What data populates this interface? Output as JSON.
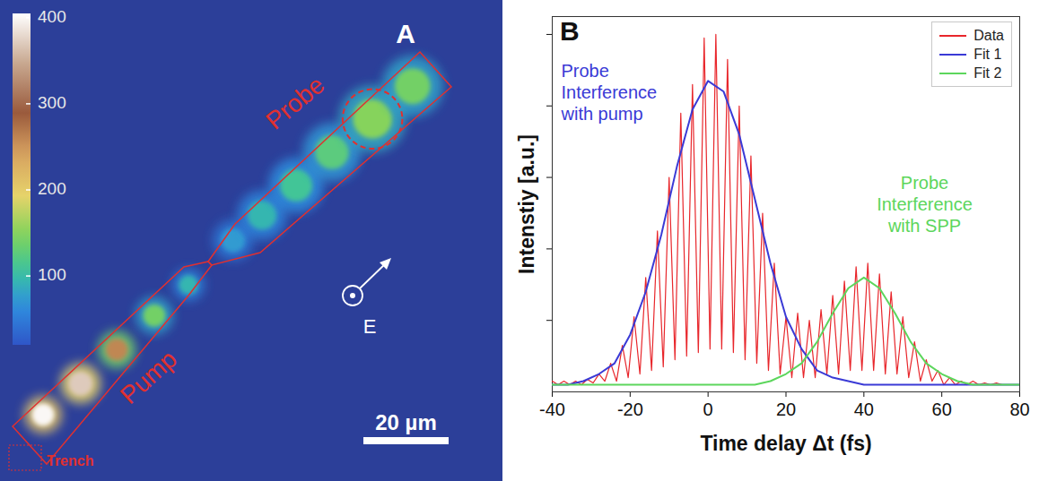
{
  "image_panel": {
    "panel": "A",
    "colorbar": {
      "range": [
        20,
        405
      ],
      "ticks": [
        100,
        200,
        300,
        400
      ]
    },
    "regions": [
      {
        "label": "Probe"
      },
      {
        "label": "Pump"
      },
      {
        "label": "Trench"
      }
    ],
    "spots": [
      {
        "x_um": 10.1,
        "y_um": 15.6,
        "intensity": 400,
        "radius_um": 2.6
      },
      {
        "x_um": 18.9,
        "y_um": 22.9,
        "intensity": 370,
        "radius_um": 2.8
      },
      {
        "x_um": 27.4,
        "y_um": 30.9,
        "intensity": 260,
        "radius_um": 2.6
      },
      {
        "x_um": 36.2,
        "y_um": 38.9,
        "intensity": 140,
        "radius_um": 2.6
      },
      {
        "x_um": 44.2,
        "y_um": 46.1,
        "intensity": 95,
        "radius_um": 2.2
      },
      {
        "x_um": 54.7,
        "y_um": 56.6,
        "intensity": 75,
        "radius_um": 2.8
      },
      {
        "x_um": 61.5,
        "y_um": 62.5,
        "intensity": 95,
        "radius_um": 3.4
      },
      {
        "x_um": 69.5,
        "y_um": 69.5,
        "intensity": 110,
        "radius_um": 3.8
      },
      {
        "x_um": 77.9,
        "y_um": 77.3,
        "intensity": 125,
        "radius_um": 4.0
      },
      {
        "x_um": 87.4,
        "y_um": 85.1,
        "intensity": 150,
        "radius_um": 4.6
      },
      {
        "x_um": 96.8,
        "y_um": 92.8,
        "intensity": 140,
        "radius_um": 4.2
      }
    ],
    "highlight": {
      "spot": 9,
      "radius_um": 7
    },
    "scale_bar": {
      "length_um": 20,
      "label": "20 µm"
    },
    "field_label": "E"
  },
  "chart_data": {
    "type": "line",
    "panel": "B",
    "x_label": "Time delay Δt (fs)",
    "y_label": "Intenstiy [a.u.]",
    "xlim": [
      -40,
      80
    ],
    "xticks": [
      -40,
      -20,
      0,
      20,
      40,
      60,
      80
    ],
    "ylim": [
      0,
      1.05
    ],
    "yticks": [
      0.2,
      0.4,
      0.6,
      0.8,
      1
    ],
    "tick_labels": "x",
    "legend": "top-right",
    "series": [
      {
        "name": "Data",
        "color": "#e8262b",
        "x": [
          -40,
          -38.5,
          -37,
          -35.5,
          -34,
          -32.5,
          -31,
          -29.5,
          -28,
          -26.5,
          -25,
          -23.5,
          -22,
          -20.5,
          -19,
          -17.5,
          -16,
          -14.5,
          -13,
          -11.5,
          -10,
          -8.5,
          -7,
          -5.5,
          -4,
          -2.5,
          -1,
          0.5,
          2,
          3.5,
          5,
          6.5,
          8,
          9.5,
          11,
          12.5,
          14,
          15.5,
          17,
          18.5,
          20,
          21.5,
          23,
          24.5,
          26,
          27.5,
          29,
          30.5,
          32,
          33.5,
          35,
          36.5,
          38,
          39.5,
          41,
          42.5,
          44,
          45.5,
          47,
          48.5,
          50,
          51.5,
          53,
          54.5,
          56,
          57.5,
          59,
          60.5,
          62,
          63.5,
          65,
          66.5,
          68,
          69.5,
          71,
          72.5,
          74,
          75.5,
          77,
          78.5,
          80
        ],
        "values": [
          0.03,
          0.02,
          0.03,
          0.02,
          0.03,
          0.02,
          0.035,
          0.025,
          0.05,
          0.03,
          0.08,
          0.03,
          0.13,
          0.04,
          0.21,
          0.05,
          0.32,
          0.06,
          0.45,
          0.07,
          0.6,
          0.09,
          0.78,
          0.1,
          0.86,
          0.11,
          0.99,
          0.12,
          1.0,
          0.12,
          0.93,
          0.11,
          0.8,
          0.09,
          0.66,
          0.08,
          0.5,
          0.06,
          0.36,
          0.05,
          0.21,
          0.04,
          0.22,
          0.04,
          0.2,
          0.04,
          0.23,
          0.05,
          0.27,
          0.05,
          0.31,
          0.06,
          0.35,
          0.06,
          0.36,
          0.06,
          0.33,
          0.05,
          0.28,
          0.05,
          0.21,
          0.04,
          0.14,
          0.03,
          0.09,
          0.03,
          0.06,
          0.02,
          0.04,
          0.02,
          0.03,
          0.02,
          0.03,
          0.02,
          0.025,
          0.02,
          0.025,
          0.02,
          0.02,
          0.02,
          0.02
        ]
      },
      {
        "name": "Fit 1",
        "color": "#3a3ad6",
        "x": [
          -40,
          -36,
          -32,
          -28,
          -24,
          -20,
          -16,
          -12,
          -8,
          -4,
          0,
          4,
          8,
          12,
          16,
          20,
          24,
          28,
          32,
          36,
          40,
          44,
          48,
          52,
          56,
          60,
          64,
          68,
          72,
          76,
          80
        ],
        "values": [
          0.02,
          0.02,
          0.03,
          0.05,
          0.08,
          0.16,
          0.28,
          0.44,
          0.63,
          0.79,
          0.87,
          0.84,
          0.72,
          0.54,
          0.36,
          0.21,
          0.12,
          0.06,
          0.04,
          0.03,
          0.02,
          0.02,
          0.02,
          0.02,
          0.02,
          0.02,
          0.02,
          0.02,
          0.02,
          0.02,
          0.02
        ]
      },
      {
        "name": "Fit 2",
        "color": "#5cd65c",
        "x": [
          -40,
          -36,
          -32,
          -28,
          -24,
          -20,
          -16,
          -12,
          -8,
          -4,
          0,
          4,
          8,
          12,
          16,
          20,
          24,
          28,
          32,
          36,
          40,
          44,
          48,
          52,
          56,
          60,
          64,
          68,
          72,
          76,
          80
        ],
        "values": [
          0.02,
          0.02,
          0.02,
          0.02,
          0.02,
          0.02,
          0.02,
          0.02,
          0.02,
          0.02,
          0.02,
          0.02,
          0.02,
          0.02,
          0.03,
          0.05,
          0.08,
          0.14,
          0.22,
          0.29,
          0.32,
          0.29,
          0.22,
          0.14,
          0.08,
          0.05,
          0.03,
          0.02,
          0.02,
          0.02,
          0.02
        ]
      }
    ],
    "annotations": [
      {
        "text": [
          "Probe",
          "Interference",
          "with pump"
        ],
        "color": "#3a3ad6"
      },
      {
        "text": [
          "Probe",
          "Interference",
          "with SPP"
        ],
        "color": "#5cd65c"
      }
    ]
  }
}
